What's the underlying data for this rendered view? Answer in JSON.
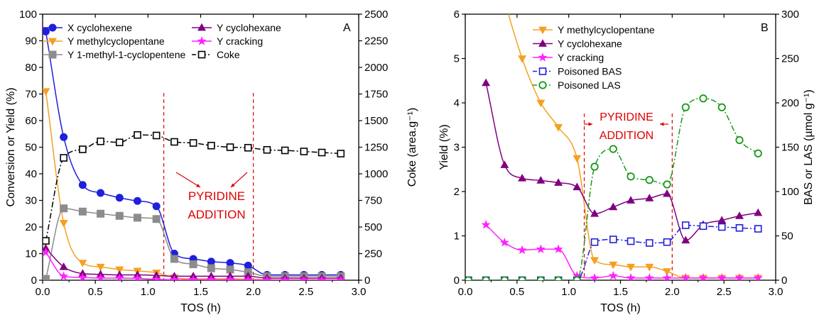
{
  "chart_data": [
    {
      "type": "line",
      "panel_label": "A",
      "xlabel": "TOS (h)",
      "ylabel": "Conversion or Yield (%)",
      "y2label": "Coke (area.g⁻¹)",
      "xlim": [
        0,
        3.0
      ],
      "ylim": [
        0,
        100
      ],
      "y2lim": [
        0,
        2500
      ],
      "xticks": [
        0.0,
        0.5,
        1.0,
        1.5,
        2.0,
        2.5,
        3.0
      ],
      "xtick_labels": [
        "0.0",
        "0.5",
        "1.0",
        "1.5",
        "2.0",
        "2.5",
        "3.0"
      ],
      "yticks": [
        0,
        10,
        20,
        30,
        40,
        50,
        60,
        70,
        80,
        90,
        100
      ],
      "y2ticks": [
        0,
        250,
        500,
        750,
        1000,
        1250,
        1500,
        1750,
        2000,
        2250,
        2500
      ],
      "legend_columns": 2,
      "legend_placement": "top",
      "series": [
        {
          "name": "X cyclohexene",
          "color": "#1f1fdc",
          "marker": "circle",
          "line": "solid",
          "axis": "left",
          "x": [
            0.03,
            0.2,
            0.38,
            0.55,
            0.73,
            0.9,
            1.08,
            1.25,
            1.43,
            1.6,
            1.78,
            1.95,
            2.13,
            2.3,
            2.48,
            2.65,
            2.83
          ],
          "y": [
            93.5,
            53.8,
            35.8,
            32.8,
            31,
            29.8,
            27.8,
            10,
            8,
            7,
            6.5,
            5.5,
            2,
            2,
            2,
            2,
            2
          ]
        },
        {
          "name": "Y methylcyclopentane",
          "color": "#f5a020",
          "marker": "triangle-down",
          "line": "solid",
          "axis": "left",
          "x": [
            0.03,
            0.2,
            0.38,
            0.55,
            0.73,
            0.9,
            1.08,
            1.25,
            1.43,
            1.6,
            1.78,
            1.95,
            2.13,
            2.3,
            2.48,
            2.65,
            2.83
          ],
          "y": [
            71,
            21.5,
            6.5,
            5,
            4,
            3.5,
            2.8,
            1,
            0.5,
            0.5,
            0.5,
            0.4,
            0.2,
            0.2,
            0.2,
            0.2,
            0.2
          ]
        },
        {
          "name": "Y 1-methyl-1-cyclopentene",
          "color": "#8c8c8c",
          "marker": "square",
          "line": "solid",
          "axis": "left",
          "x": [
            0.03,
            0.2,
            0.38,
            0.55,
            0.73,
            0.9,
            1.08,
            1.25,
            1.43,
            1.6,
            1.78,
            1.95,
            2.13,
            2.3,
            2.48,
            2.65,
            2.83
          ],
          "y": [
            0.5,
            27,
            25.8,
            25,
            24.2,
            23.5,
            23,
            8,
            6,
            4.5,
            4,
            3,
            1.5,
            1.5,
            1.5,
            1.5,
            1.5
          ]
        },
        {
          "name": "Y cyclohexane",
          "color": "#800080",
          "marker": "triangle-up",
          "line": "solid",
          "axis": "left",
          "x": [
            0.03,
            0.2,
            0.38,
            0.55,
            0.73,
            0.9,
            1.08,
            1.25,
            1.43,
            1.6,
            1.78,
            1.95,
            2.13,
            2.3,
            2.48,
            2.65,
            2.83
          ],
          "y": [
            12,
            5,
            2.5,
            2.2,
            2,
            2,
            1.8,
            1.5,
            1.5,
            1.5,
            1.5,
            1.5,
            0.8,
            0.8,
            0.8,
            0.8,
            0.8
          ]
        },
        {
          "name": "Y cracking",
          "color": "#ff20ff",
          "marker": "star",
          "line": "solid",
          "axis": "left",
          "x": [
            0.03,
            0.2,
            0.38,
            0.55,
            0.73,
            0.9,
            1.08,
            1.25,
            1.43,
            1.6,
            1.78,
            1.95,
            2.13,
            2.3,
            2.48,
            2.65,
            2.83
          ],
          "y": [
            10.5,
            1.5,
            1,
            0.8,
            0.8,
            0.7,
            0.3,
            0.2,
            0.2,
            0.2,
            0.2,
            0.1,
            0.1,
            0.1,
            0.1,
            0.1,
            0.1
          ]
        },
        {
          "name": "Coke",
          "color": "#000000",
          "marker": "open-square",
          "line": "dashdot",
          "axis": "right",
          "x": [
            0.03,
            0.2,
            0.38,
            0.55,
            0.73,
            0.9,
            1.08,
            1.25,
            1.43,
            1.6,
            1.78,
            1.95,
            2.13,
            2.3,
            2.48,
            2.65,
            2.83
          ],
          "y": [
            370,
            1150,
            1230,
            1305,
            1295,
            1365,
            1360,
            1300,
            1290,
            1265,
            1250,
            1245,
            1225,
            1220,
            1210,
            1200,
            1190
          ]
        }
      ],
      "annotations": [
        {
          "text": "PYRIDINE",
          "color": "#e00000"
        },
        {
          "text": "ADDITION",
          "color": "#e00000"
        }
      ],
      "vlines_x": [
        1.15,
        2.0
      ]
    },
    {
      "type": "line",
      "panel_label": "B",
      "xlabel": "TOS (h)",
      "ylabel": "Yield (%)",
      "y2label": "BAS or LAS (µmol g⁻¹)",
      "xlim": [
        0,
        3.0
      ],
      "ylim": [
        0,
        6
      ],
      "y2lim": [
        0,
        300
      ],
      "xticks": [
        0.0,
        0.5,
        1.0,
        1.5,
        2.0,
        2.5,
        3.0
      ],
      "xtick_labels": [
        "0.0",
        "0.5",
        "1.0",
        "1.5",
        "2.0",
        "2.5",
        "3.0"
      ],
      "yticks": [
        0,
        1,
        2,
        3,
        4,
        5,
        6
      ],
      "y2ticks": [
        0,
        50,
        100,
        150,
        200,
        250,
        300
      ],
      "legend_columns": 1,
      "legend_placement": "top-center",
      "series": [
        {
          "name": "Y methylcyclopentane",
          "color": "#f5a020",
          "marker": "triangle-down",
          "line": "solid",
          "axis": "left",
          "x": [
            0.2,
            0.55,
            0.73,
            0.9,
            1.08,
            1.25,
            1.43,
            1.6,
            1.78,
            1.95,
            2.13,
            2.3,
            2.48,
            2.65,
            2.83
          ],
          "y": [
            7.8,
            5.0,
            4.0,
            3.45,
            2.75,
            0.45,
            0.35,
            0.3,
            0.3,
            0.2,
            0.05,
            0.05,
            0.05,
            0.05,
            0.05
          ]
        },
        {
          "name": "Y cyclohexane",
          "color": "#800080",
          "marker": "triangle-up",
          "line": "solid",
          "axis": "left",
          "x": [
            0.2,
            0.38,
            0.55,
            0.73,
            0.9,
            1.08,
            1.25,
            1.43,
            1.6,
            1.78,
            1.95,
            2.13,
            2.3,
            2.48,
            2.65,
            2.83
          ],
          "y": [
            4.45,
            2.6,
            2.3,
            2.25,
            2.2,
            2.1,
            1.5,
            1.65,
            1.8,
            1.85,
            1.95,
            0.9,
            1.25,
            1.35,
            1.45,
            1.52
          ]
        },
        {
          "name": "Y cracking",
          "color": "#ff20ff",
          "marker": "star",
          "line": "solid",
          "axis": "left",
          "x": [
            0.2,
            0.38,
            0.55,
            0.73,
            0.9,
            1.08,
            1.25,
            1.43,
            1.6,
            1.78,
            1.95,
            2.13,
            2.3,
            2.48,
            2.65,
            2.83
          ],
          "y": [
            1.25,
            0.85,
            0.68,
            0.7,
            0.7,
            0.1,
            0.05,
            0.1,
            0.05,
            0.05,
            0.05,
            0.05,
            0.05,
            0.05,
            0.05,
            0.05
          ]
        },
        {
          "name": "Poisoned BAS",
          "color": "#1f1fdc",
          "marker": "open-square",
          "line": "dashdot",
          "axis": "right",
          "x": [
            0.03,
            0.2,
            0.38,
            0.55,
            0.73,
            0.9,
            1.08,
            1.25,
            1.43,
            1.6,
            1.78,
            1.95,
            2.13,
            2.3,
            2.48,
            2.65,
            2.83
          ],
          "y": [
            0,
            0,
            0,
            0,
            0,
            0,
            0,
            43,
            46,
            44,
            42,
            43,
            62,
            61,
            60,
            59,
            58
          ]
        },
        {
          "name": "Poisoned LAS",
          "color": "#1a9a1a",
          "marker": "open-circle",
          "line": "dashdot",
          "axis": "right",
          "x": [
            0.03,
            0.2,
            0.38,
            0.55,
            0.73,
            0.9,
            1.08,
            1.25,
            1.43,
            1.6,
            1.78,
            1.95,
            2.13,
            2.3,
            2.48,
            2.65,
            2.83
          ],
          "y": [
            0,
            0,
            0,
            0,
            0,
            0,
            0,
            128,
            148,
            117,
            113,
            108,
            195,
            205,
            195,
            158,
            143
          ]
        }
      ],
      "annotations": [
        {
          "text": "PYRIDINE",
          "color": "#e00000"
        },
        {
          "text": "ADDITION",
          "color": "#e00000"
        }
      ],
      "vlines_x": [
        1.15,
        2.0
      ]
    }
  ]
}
